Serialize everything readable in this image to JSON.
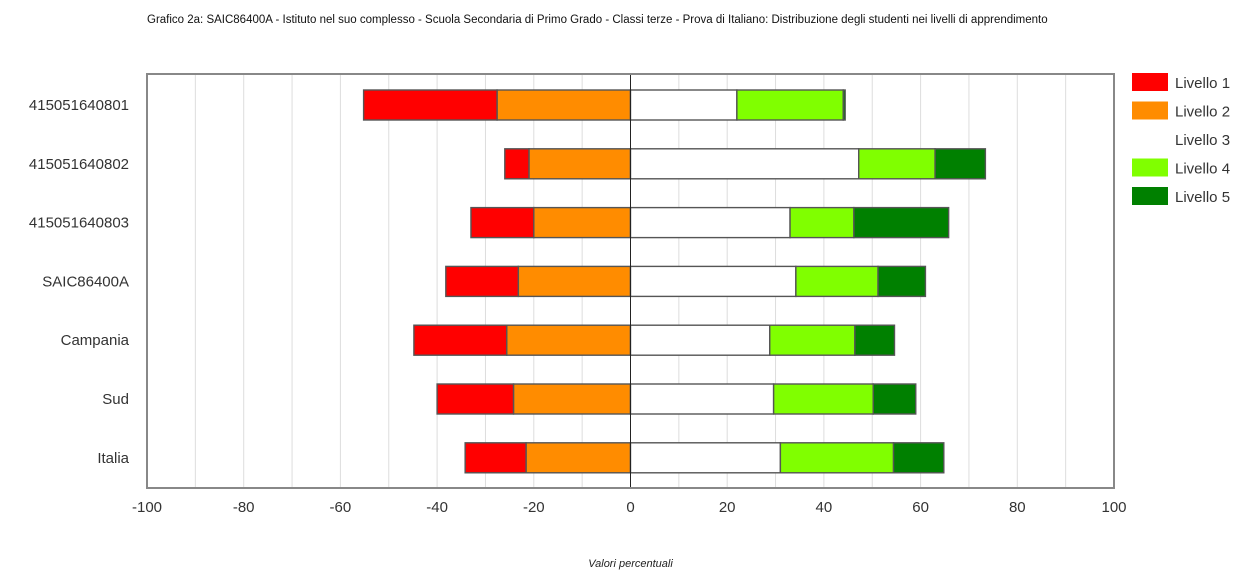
{
  "chart_data": {
    "type": "bar",
    "orientation": "horizontal",
    "stacking": "diverging",
    "title": "Grafico 2a: SAIC86400A - Istituto nel suo complesso - Scuola Secondaria di Primo Grado - Classi terze - Prova di Italiano: Distribuzione degli studenti nei livelli di apprendimento",
    "xlabel": "Valori percentuali",
    "ylabel": "",
    "xlim": [
      -100,
      100
    ],
    "xticks": [
      -100,
      -80,
      -60,
      -40,
      -20,
      0,
      20,
      40,
      60,
      80,
      100
    ],
    "grid": true,
    "legend_position": "right",
    "categories": [
      "415051640801",
      "415051640802",
      "415051640803",
      "SAIC86400A",
      "Campania",
      "Sud",
      "Italia"
    ],
    "series": [
      {
        "name": "Livello 1",
        "color": "#ff0000",
        "side": "left",
        "values": [
          27.6,
          5.0,
          13.0,
          15.0,
          19.2,
          15.8,
          12.6
        ]
      },
      {
        "name": "Livello 2",
        "color": "#ff8c00",
        "side": "left",
        "values": [
          27.6,
          21.0,
          20.0,
          23.2,
          25.6,
          24.2,
          21.6
        ]
      },
      {
        "name": "Livello 3",
        "color": "#ffffff",
        "side": "right",
        "values": [
          22.0,
          47.2,
          33.0,
          34.2,
          28.8,
          29.6,
          31.0
        ]
      },
      {
        "name": "Livello 4",
        "color": "#80ff00",
        "side": "right",
        "values": [
          22.0,
          15.8,
          13.2,
          17.0,
          17.6,
          20.6,
          23.4
        ]
      },
      {
        "name": "Livello 5",
        "color": "#008000",
        "side": "right",
        "values": [
          0.4,
          10.4,
          19.6,
          9.8,
          8.2,
          8.8,
          10.4
        ]
      }
    ]
  }
}
